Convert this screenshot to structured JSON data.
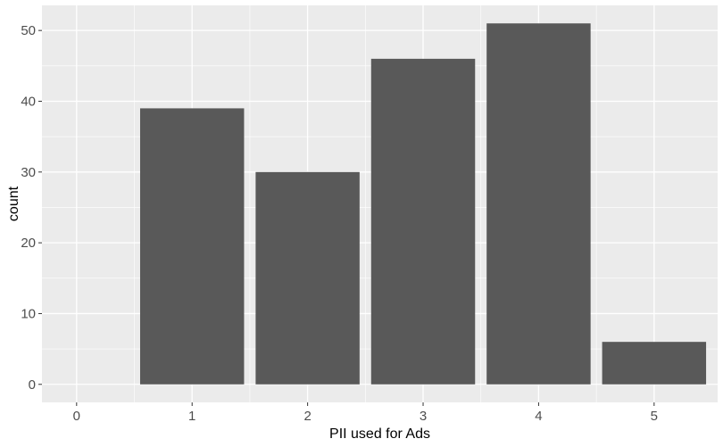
{
  "chart_data": {
    "type": "bar",
    "x": [
      0,
      1,
      2,
      3,
      4,
      5
    ],
    "bars": [
      {
        "x": 1,
        "value": 39
      },
      {
        "x": 2,
        "value": 30
      },
      {
        "x": 3,
        "value": 46
      },
      {
        "x": 4,
        "value": 51
      },
      {
        "x": 5,
        "value": 6
      }
    ],
    "xlabel": "PII used for Ads",
    "ylabel": "count",
    "xticks": [
      "0",
      "1",
      "2",
      "3",
      "4",
      "5"
    ],
    "yticks": [
      "0",
      "10",
      "20",
      "30",
      "40",
      "50"
    ],
    "xlim": [
      -0.3,
      5.55
    ],
    "ylim": [
      -2.55,
      53.55
    ],
    "grid": true,
    "colors": {
      "panel_background": "#ebebeb",
      "grid": "#ffffff",
      "bar_fill": "#595959"
    }
  }
}
